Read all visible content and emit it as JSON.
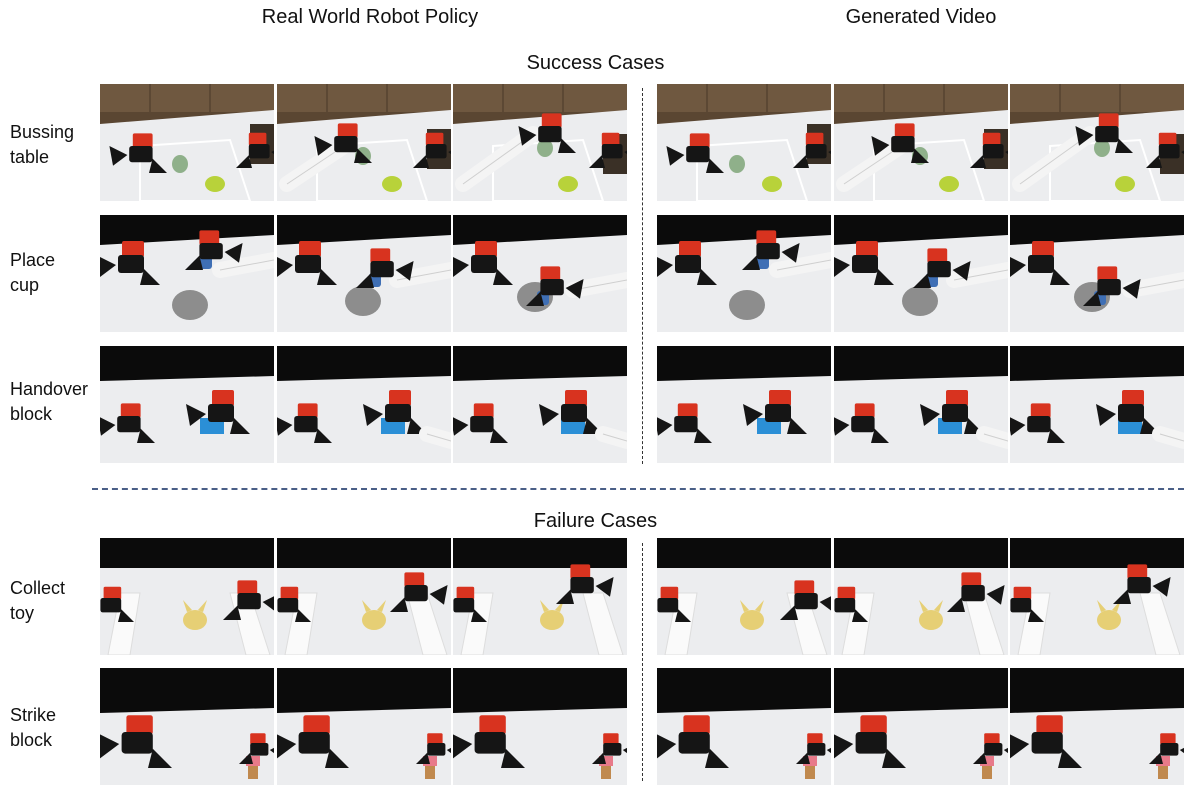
{
  "headers": {
    "left": "Real World Robot Policy",
    "right": "Generated Video"
  },
  "sections": {
    "success": "Success Cases",
    "failure": "Failure Cases"
  },
  "rows": [
    {
      "label_line1": "Bussing",
      "label_line2": "table",
      "scene": "bussing"
    },
    {
      "label_line1": "Place",
      "label_line2": "cup",
      "scene": "cup"
    },
    {
      "label_line1": "Handover",
      "label_line2": "block",
      "scene": "handover"
    },
    {
      "label_line1": "Collect",
      "label_line2": "toy",
      "scene": "toy"
    },
    {
      "label_line1": "Strike",
      "label_line2": "block",
      "scene": "strike"
    }
  ],
  "colors": {
    "separator_horizontal": "#4a5f87",
    "separator_vertical": "#333333",
    "table_white": "#ecedef",
    "robot_red": "#d8331f",
    "robot_black": "#151515"
  }
}
